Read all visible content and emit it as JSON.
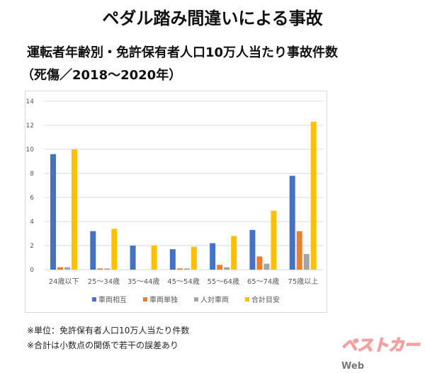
{
  "title": "ペダル踏み間違いによる事故",
  "subtitle": "運転者年齢別・免許保有者人口10万人当たり事故件数",
  "subtitle2": "（死傷／2018～2020年）",
  "notes": [
    "※単位：免許保有者人口10万人当たり件数",
    "※合計は小数点の関係で若干の誤差あり"
  ],
  "logo": "ベストカーWeb",
  "chart_data": {
    "type": "bar",
    "categories": [
      "24歳以下",
      "25～34歳",
      "35～44歳",
      "45～54歳",
      "55～64歳",
      "65～74歳",
      "75歳以上"
    ],
    "series": [
      {
        "name": "車両相互",
        "color": "#4472c4",
        "values": [
          9.6,
          3.2,
          2.0,
          1.7,
          2.2,
          3.3,
          7.8
        ]
      },
      {
        "name": "車両単独",
        "color": "#ed7d31",
        "values": [
          0.2,
          0.1,
          0,
          0.1,
          0.4,
          1.1,
          3.2
        ]
      },
      {
        "name": "人対車両",
        "color": "#a5a5a5",
        "values": [
          0.2,
          0.1,
          0,
          0.1,
          0.2,
          0.5,
          1.3
        ]
      },
      {
        "name": "合計目安",
        "color": "#ffc000",
        "values": [
          10.0,
          3.4,
          2.0,
          1.9,
          2.8,
          4.9,
          12.3
        ]
      }
    ],
    "ylim": [
      0,
      14
    ],
    "yticks": [
      "0",
      "2",
      "4",
      "6",
      "8",
      "10",
      "12",
      "14"
    ],
    "grid": true,
    "legend": "bottom"
  }
}
